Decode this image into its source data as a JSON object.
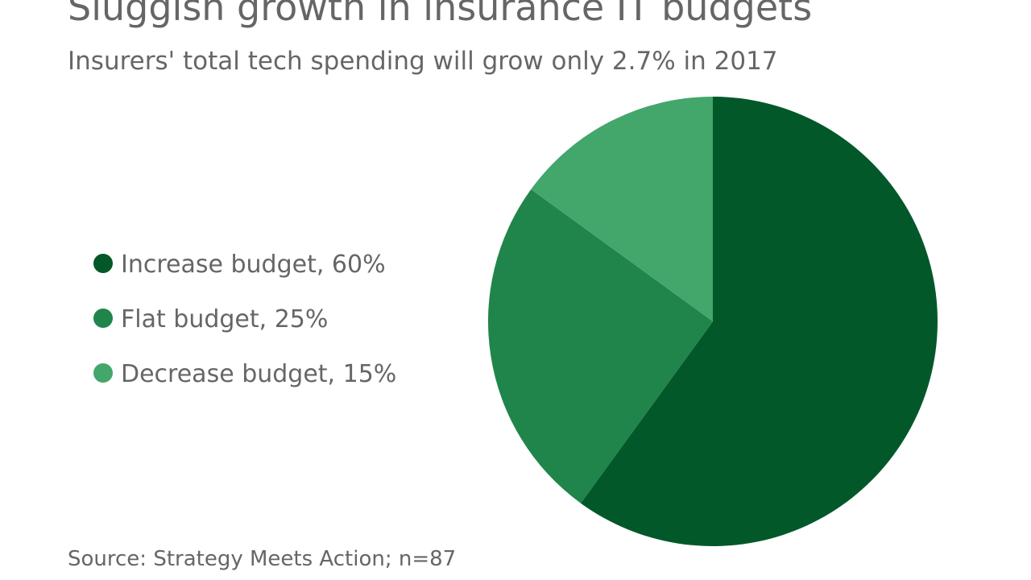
{
  "chart_data": {
    "type": "pie",
    "title": "Sluggish growth in insurance IT budgets",
    "subtitle": "Insurers' total tech spending will grow only 2.7% in 2017",
    "source": "Source: Strategy Meets Action; n=87",
    "categories": [
      "Increase budget, 60%",
      "Flat budget, 25%",
      "Decrease budget, 15%"
    ],
    "values": [
      60,
      25,
      15
    ],
    "colors": [
      "#03582a",
      "#20854a",
      "#43a66b"
    ],
    "legend": "left"
  }
}
